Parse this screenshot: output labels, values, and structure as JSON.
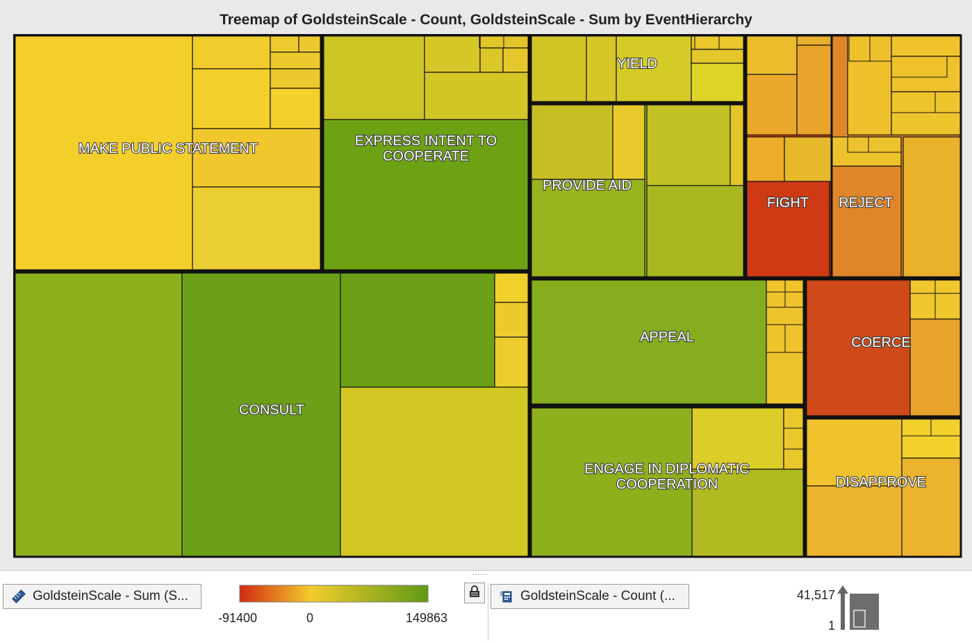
{
  "chart_data": {
    "type": "treemap",
    "title": "Treemap of GoldsteinScale - Count, GoldsteinScale - Sum by EventHierarchy",
    "size_measure": "GoldsteinScale - Count",
    "color_measure": "GoldsteinScale - Sum",
    "hierarchy": "EventHierarchy",
    "color_range": {
      "min": -91400,
      "mid": 0,
      "max": 149863,
      "colors": [
        "#d22a10",
        "#f2cc2c",
        "#5f9a16"
      ]
    },
    "size_range": {
      "max_label": "41,517",
      "min_label": "1"
    },
    "categories": [
      {
        "label": "MAKE PUBLIC STATEMENT",
        "color": "#f3cf2c"
      },
      {
        "label": "EXPRESS INTENT TO\nCOOPERATE",
        "color": "#6ea215"
      },
      {
        "label": "YIELD",
        "color": "#d6cb26"
      },
      {
        "label": "PROVIDE AID",
        "color": "#97b41e"
      },
      {
        "label": "FIGHT",
        "color": "#cf3a14"
      },
      {
        "label": "REJECT",
        "color": "#e0862a"
      },
      {
        "label": "CONSULT",
        "color": "#6ba017"
      },
      {
        "label": "APPEAL",
        "color": "#85ad1e"
      },
      {
        "label": "COERCE",
        "color": "#cf4a18"
      },
      {
        "label": "ENGAGE IN DIPLOMATIC\nCOOPERATION",
        "color": "#8fb01d"
      },
      {
        "label": "DISAPPROVE",
        "color": "#ecb42e"
      }
    ]
  },
  "controls": {
    "color_role_label": "GoldsteinScale - Sum (S...",
    "size_role_label": "GoldsteinScale - Count (...",
    "legend_min": "-91400",
    "legend_mid": "0",
    "legend_max": "149863",
    "size_max": "41,517",
    "size_min": "1",
    "splitter_grip": "......"
  },
  "icons": {
    "color_role": "ruler-icon",
    "size_role": "calculator-icon",
    "lock": "lock-icon"
  }
}
